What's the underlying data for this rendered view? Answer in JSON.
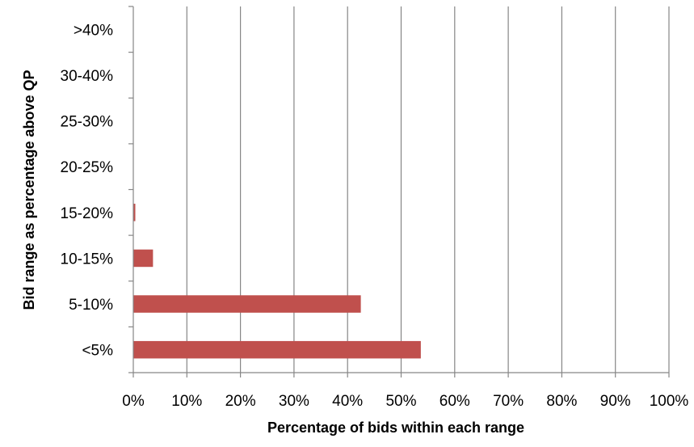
{
  "chart_data": {
    "type": "bar",
    "orientation": "horizontal",
    "categories": [
      "<5%",
      "5-10%",
      "10-15%",
      "15-20%",
      "20-25%",
      "25-30%",
      "30-40%",
      ">40%"
    ],
    "values": [
      53.6,
      42.4,
      3.6,
      0.3,
      0,
      0,
      0,
      0
    ],
    "xlabel": "Percentage of bids within each range",
    "ylabel": "Bid range as percentage above QP",
    "xlim": [
      0,
      100
    ],
    "x_ticks": [
      "0%",
      "10%",
      "20%",
      "30%",
      "40%",
      "50%",
      "60%",
      "70%",
      "80%",
      "90%",
      "100%"
    ],
    "grid": "vertical",
    "legend": "none",
    "colors": {
      "bar": "#c0504d",
      "grid": "#868686",
      "axis": "#868686"
    }
  }
}
